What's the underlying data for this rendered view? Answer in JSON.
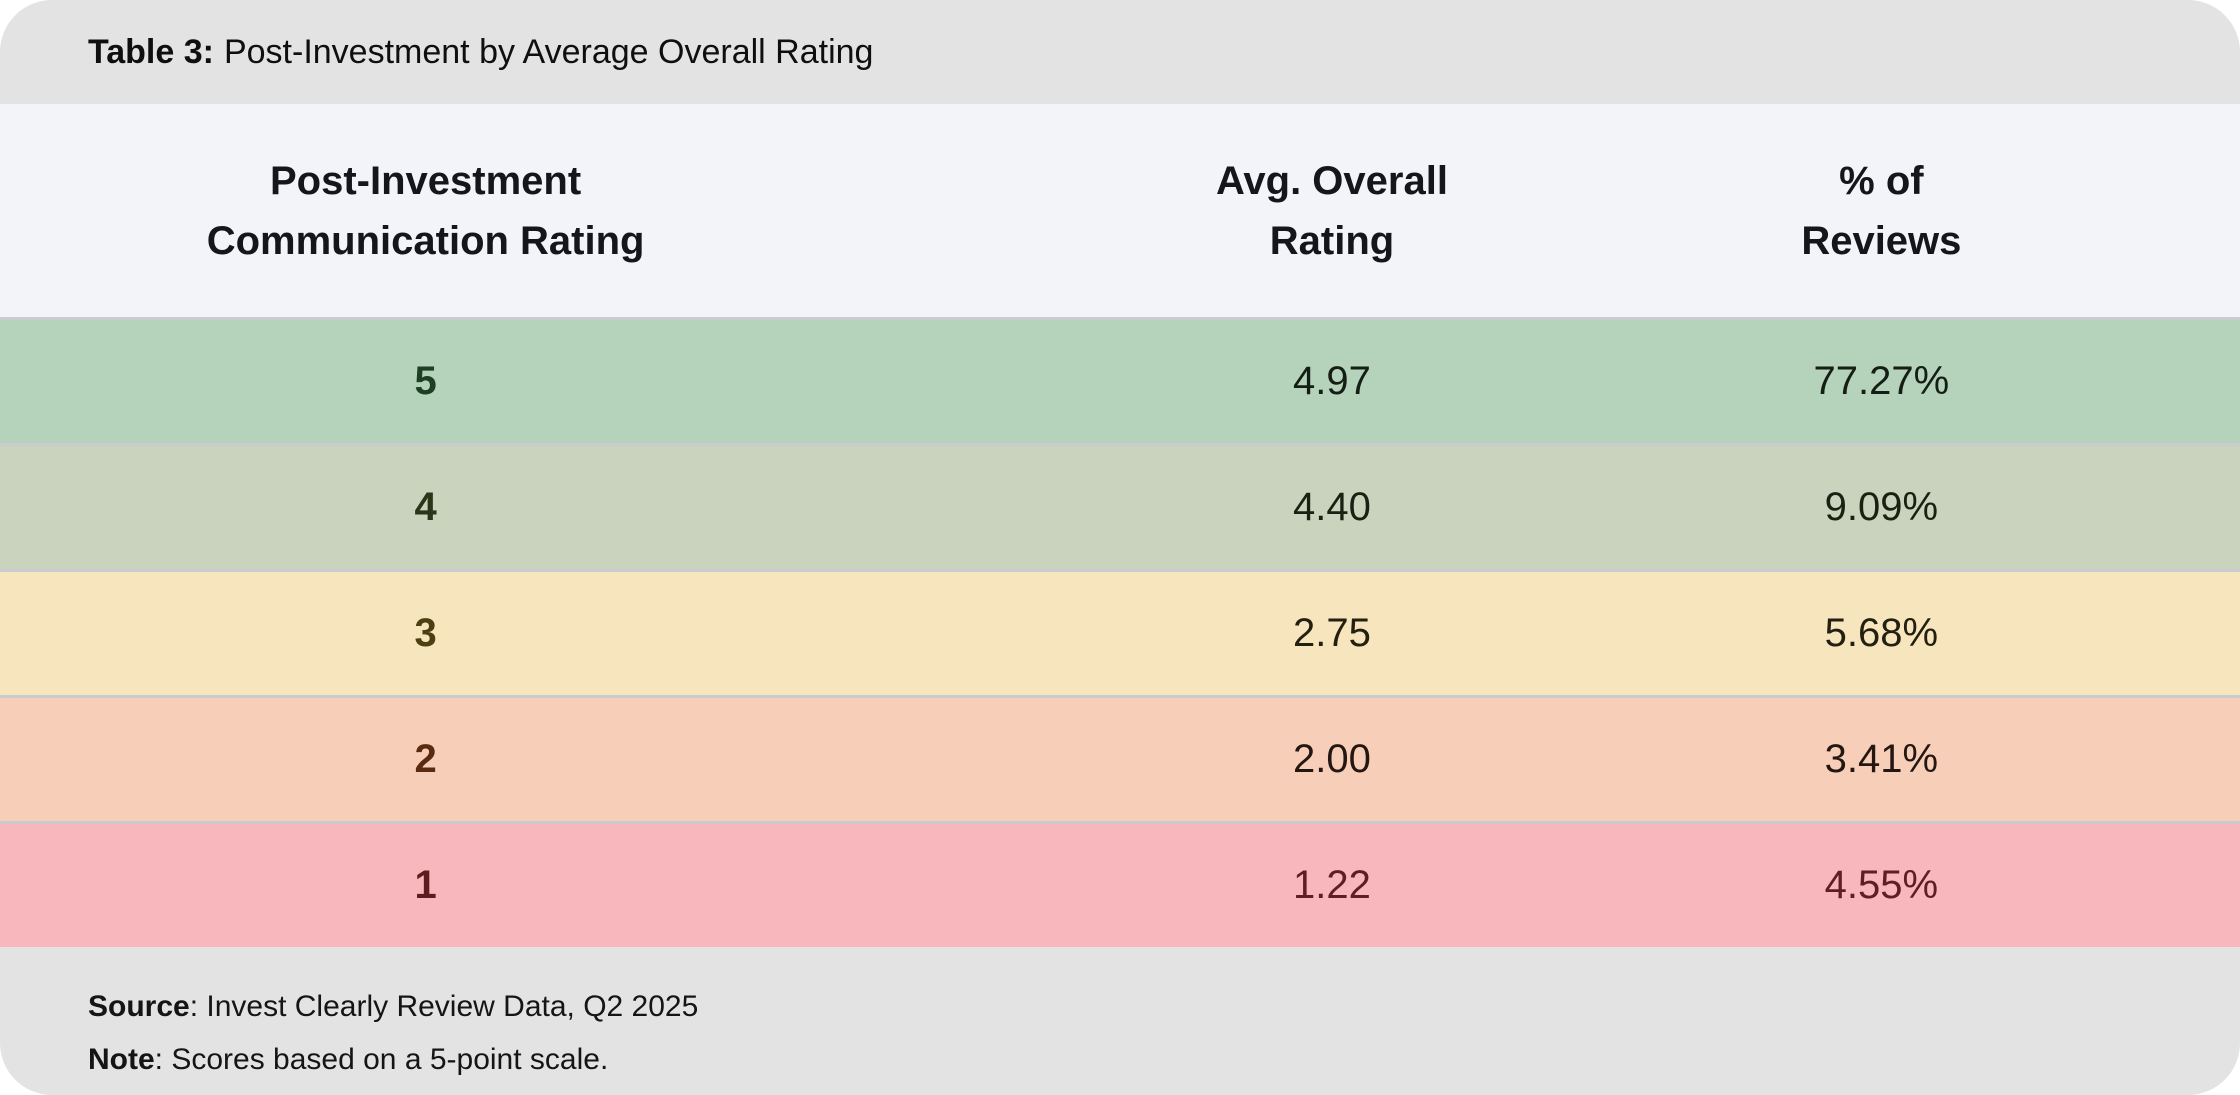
{
  "title": {
    "label": "Table 3:",
    "text": "Post-Investment by Average Overall Rating"
  },
  "table": {
    "columns": [
      {
        "line1": "Post-Investment",
        "line2": "Communication Rating"
      },
      {
        "line1": "Avg. Overall",
        "line2": "Rating"
      },
      {
        "line1": "% of",
        "line2": "Reviews"
      }
    ],
    "rows": [
      {
        "rating": "5",
        "avg": "4.97",
        "pct": "77.27%",
        "bg": "#b5d2ba",
        "rating_color": "#1d4023",
        "value_color": "#151e15"
      },
      {
        "rating": "4",
        "avg": "4.40",
        "pct": "9.09%",
        "bg": "#c9d3bd",
        "rating_color": "#2b3517",
        "value_color": "#1b2013"
      },
      {
        "rating": "3",
        "avg": "2.75",
        "pct": "5.68%",
        "bg": "#f6e5bd",
        "rating_color": "#4d3f12",
        "value_color": "#242011"
      },
      {
        "rating": "2",
        "avg": "2.00",
        "pct": "3.41%",
        "bg": "#f7cfb9",
        "rating_color": "#5a2a11",
        "value_color": "#241712"
      },
      {
        "rating": "1",
        "avg": "1.22",
        "pct": "4.55%",
        "bg": "#f8b6bd",
        "rating_color": "#5e1b20",
        "value_color": "#601d23"
      }
    ]
  },
  "footer": {
    "source_label": "Source",
    "source_text": ": Invest Clearly Review Data, Q2 2025",
    "note_label": "Note",
    "note_text": ": Scores based on a 5-point scale."
  },
  "chart_data": {
    "type": "table",
    "title": "Table 3: Post-Investment by Average Overall Rating",
    "columns": [
      "Post-Investment Communication Rating",
      "Avg. Overall Rating",
      "% of Reviews"
    ],
    "rows": [
      [
        "5",
        4.97,
        "77.27%"
      ],
      [
        "4",
        4.4,
        "9.09%"
      ],
      [
        "3",
        2.75,
        "5.68%"
      ],
      [
        "2",
        2.0,
        "3.41%"
      ],
      [
        "1",
        1.22,
        "4.55%"
      ]
    ],
    "row_status_colors": [
      "#b5d2ba",
      "#c9d3bd",
      "#f6e5bd",
      "#f7cfb9",
      "#f8b6bd"
    ],
    "source": "Invest Clearly Review Data, Q2 2025",
    "note": "Scores based on a 5-point scale."
  }
}
